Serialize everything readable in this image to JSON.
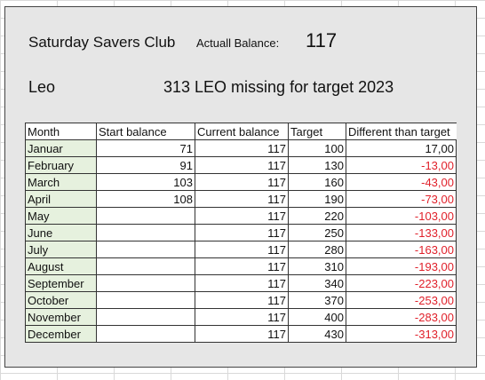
{
  "header": {
    "club_name": "Saturday Savers Club",
    "balance_label": "Actuall Balance:",
    "balance_value": "117",
    "person_name": "Leo",
    "missing_text": "313 LEO missing for target 2023"
  },
  "table": {
    "columns": [
      "Month",
      "Start balance",
      "Current balance",
      "Target",
      "Different than target"
    ],
    "rows": [
      {
        "month": "Januar",
        "start": "71",
        "current": "117",
        "target": "100",
        "diff": "17,00"
      },
      {
        "month": "February",
        "start": "91",
        "current": "117",
        "target": "130",
        "diff": "-13,00"
      },
      {
        "month": "March",
        "start": "103",
        "current": "117",
        "target": "160",
        "diff": "-43,00"
      },
      {
        "month": "April",
        "start": "108",
        "current": "117",
        "target": "190",
        "diff": "-73,00"
      },
      {
        "month": "May",
        "start": "",
        "current": "117",
        "target": "220",
        "diff": "-103,00"
      },
      {
        "month": "June",
        "start": "",
        "current": "117",
        "target": "250",
        "diff": "-133,00"
      },
      {
        "month": "July",
        "start": "",
        "current": "117",
        "target": "280",
        "diff": "-163,00"
      },
      {
        "month": "August",
        "start": "",
        "current": "117",
        "target": "310",
        "diff": "-193,00"
      },
      {
        "month": "September",
        "start": "",
        "current": "117",
        "target": "340",
        "diff": "-223,00"
      },
      {
        "month": "October",
        "start": "",
        "current": "117",
        "target": "370",
        "diff": "-253,00"
      },
      {
        "month": "November",
        "start": "",
        "current": "117",
        "target": "400",
        "diff": "-283,00"
      },
      {
        "month": "December",
        "start": "",
        "current": "117",
        "target": "430",
        "diff": "-313,00"
      }
    ]
  },
  "colors": {
    "negative": "#e0202a",
    "month_fill": "#e6f1de",
    "panel_fill": "#e6e6e6"
  }
}
